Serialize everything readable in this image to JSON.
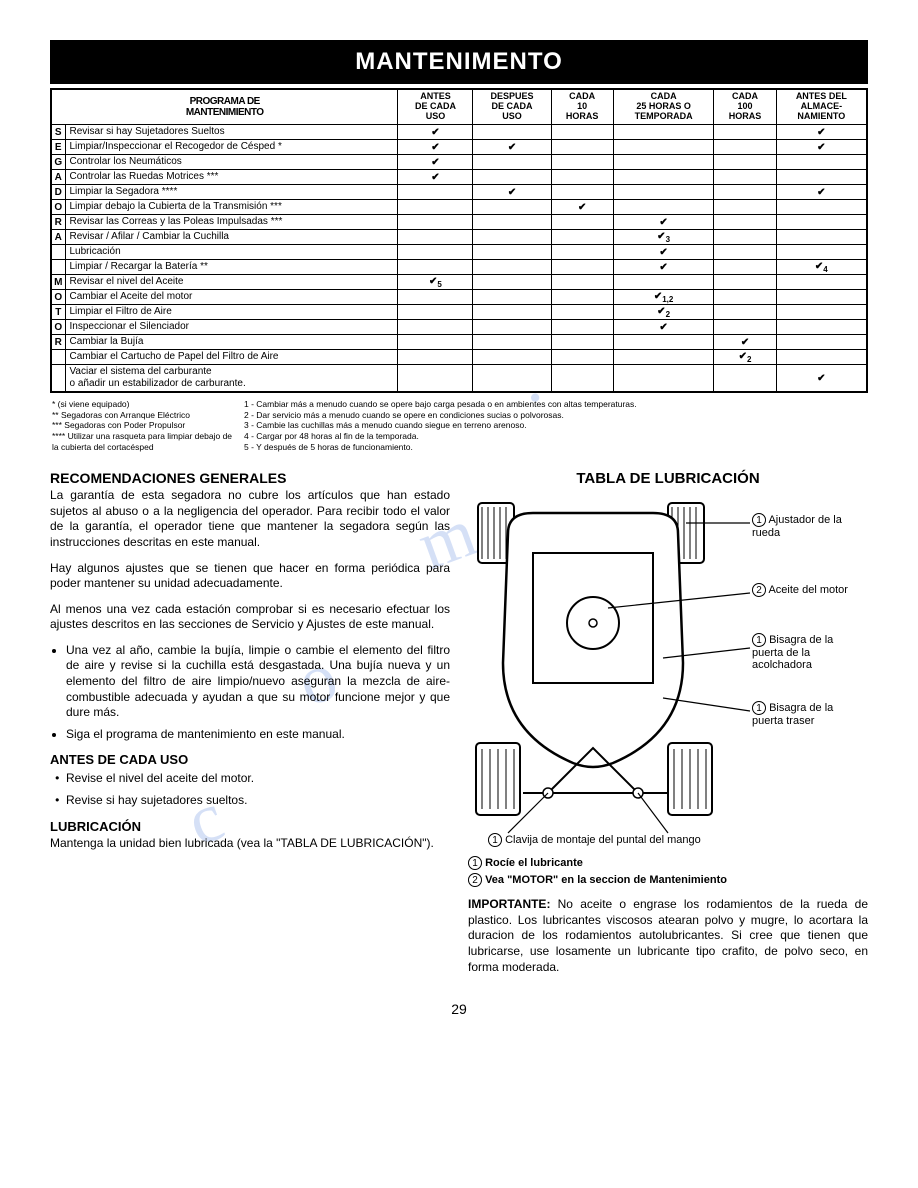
{
  "header": "MANTENIMENTO",
  "table_title_line1": "PROGRAMA DE",
  "table_title_line2": "MANTENIMIENTO",
  "columns": [
    "ANTES\nDE CADA\nUSO",
    "DESPUES\nDE CADA\nUSO",
    "CADA\n10\nHORAS",
    "CADA\n25 HORAS O\nTEMPORADA",
    "CADA\n100\nHORAS",
    "ANTES DEL\nALMACE-\nNAMIENTO"
  ],
  "side_labels": [
    "S",
    "E",
    "G",
    "A",
    "D",
    "O",
    "R",
    "A",
    "",
    "",
    "M",
    "O",
    "T",
    "O",
    "R",
    ""
  ],
  "rows": [
    {
      "task": "Revisar si hay Sujetadores Sueltos",
      "c": [
        "✔",
        "",
        "",
        "",
        "",
        "✔"
      ]
    },
    {
      "task": "Limpiar/Inspeccionar el Recogedor de Césped *",
      "c": [
        "✔",
        "✔",
        "",
        "",
        "",
        "✔"
      ]
    },
    {
      "task": "Controlar los Neumáticos",
      "c": [
        "✔",
        "",
        "",
        "",
        "",
        ""
      ]
    },
    {
      "task": "Controlar las Ruedas Motrices ***",
      "c": [
        "✔",
        "",
        "",
        "",
        "",
        ""
      ]
    },
    {
      "task": "Limpiar la Segadora ****",
      "c": [
        "",
        "✔",
        "",
        "",
        "",
        "✔"
      ]
    },
    {
      "task": "Limpiar debajo la Cubierta de la Transmisión ***",
      "c": [
        "",
        "",
        "✔",
        "",
        "",
        ""
      ]
    },
    {
      "task": "Revisar las Correas y las Poleas Impulsadas ***",
      "c": [
        "",
        "",
        "",
        "✔",
        "",
        ""
      ]
    },
    {
      "task": "Revisar / Afilar / Cambiar la Cuchilla",
      "c": [
        "",
        "",
        "",
        "✔3",
        "",
        ""
      ]
    },
    {
      "task": "Lubricación",
      "c": [
        "",
        "",
        "",
        "✔",
        "",
        ""
      ]
    },
    {
      "task": "Limpiar / Recargar la Batería **",
      "c": [
        "",
        "",
        "",
        "✔",
        "",
        "✔4"
      ]
    },
    {
      "task": "Revisar el nivel del Aceite",
      "c": [
        "✔5",
        "",
        "",
        "",
        "",
        ""
      ]
    },
    {
      "task": "Cambiar el Aceite del motor",
      "c": [
        "",
        "",
        "",
        "✔1,2",
        "",
        ""
      ]
    },
    {
      "task": "Limpiar el Filtro de Aire",
      "c": [
        "",
        "",
        "",
        "✔2",
        "",
        ""
      ]
    },
    {
      "task": "Inspeccionar el Silenciador",
      "c": [
        "",
        "",
        "",
        "✔",
        "",
        ""
      ]
    },
    {
      "task": "Cambiar la Bujía",
      "c": [
        "",
        "",
        "",
        "",
        "✔",
        ""
      ]
    },
    {
      "task": "Cambiar el Cartucho de Papel del Filtro de Aire",
      "c": [
        "",
        "",
        "",
        "",
        "✔2",
        ""
      ]
    },
    {
      "task": "Vaciar el sistema del carburante\no añadir un estabilizador de carburante.",
      "c": [
        "",
        "",
        "",
        "",
        "",
        "✔"
      ]
    }
  ],
  "fn_left": [
    "* (si viene equipado)",
    "** Segadoras con Arranque Eléctrico",
    "*** Segadoras con Poder Propulsor",
    "**** Utilizar una rasqueta para limpiar debajo de la cubierta del cortacésped"
  ],
  "fn_right": [
    "1 - Cambiar más a menudo cuando se opere bajo carga pesada o en ambientes con altas temperaturas.",
    "2 - Dar servicio más a menudo cuando se opere en condiciones sucias o polvorosas.",
    "3 - Cambie las cuchillas más a menudo cuando siegue en terreno arenoso.",
    "4 - Cargar por 48 horas al fin de la temporada.",
    "5 - Y después de 5 horas de funcionamiento."
  ],
  "rec_title": "RECOMENDACIONES GENERALES",
  "rec_p1": "La garantía de esta segadora no cubre los artículos que han estado sujetos al abuso o a la negligencia del operador. Para recibir todo el valor de la garantía, el operador tiene que mantener la segadora según las instrucciones descritas en este manual.",
  "rec_p2": "Hay algunos ajustes que se tienen que hacer en forma periódica para poder mantener su unidad adecuadamente.",
  "rec_p3": "Al menos una vez cada estación comprobar si es necesario efectuar los ajustes descritos en las secciones de Servicio y Ajustes de este manual.",
  "rec_li1": "Una vez al año, cambie la bujía, limpie o cambie el elemento del filtro de aire y revise si la cuchilla está desgastada. Una bujía nueva y un elemento del filtro de aire limpio/nuevo aseguran la mezcla de aire-combustible adecuada y ayudan a que su motor funcione mejor y que dure más.",
  "rec_li2": "Siga el programa de mantenimiento en este manual.",
  "before_title": "ANTES DE CADA USO",
  "before_li1": "Revise el nivel del aceite del motor.",
  "before_li2": "Revise si hay sujetadores sueltos.",
  "lub_title": "LUBRICACIÓN",
  "lub_p1": "Mantenga la unidad bien lubricada (vea la \"TABLA DE LUBRICACIÓN\").",
  "lube_table_title": "TABLA DE LUBRICACIÓN",
  "d_label1": "Ajustador de la rueda",
  "d_label2": "Aceite del motor",
  "d_label3": "Bisagra de la puerta de la acolchadora",
  "d_label4": "Bisagra de la puerta traser",
  "d_label5": "Clavija de montaje del puntal del mango",
  "legend1": "Rocíe el lubricante",
  "legend2": "Vea \"MOTOR\" en la seccion de Mantenimiento",
  "important_title": "IMPORTANTE:",
  "important_text": " No aceite o engrase los rodamientos de la rueda de plastico. Los lubricantes viscosos atearan polvo y mugre, lo acortara la duracion de los rodamientos autolubricantes. Si cree que tienen que lubricarse, use losamente un lubricante tipo crafito, de polvo seco, en forma moderada.",
  "page_number": "29"
}
